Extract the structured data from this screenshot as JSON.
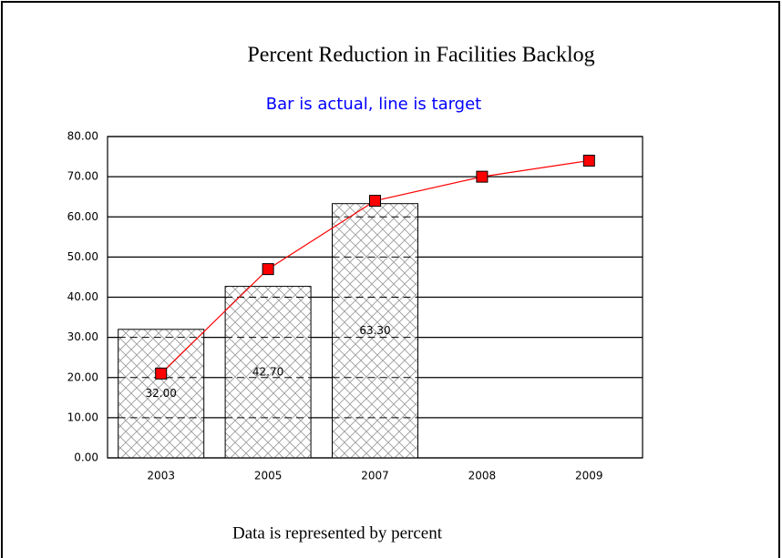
{
  "chart_data": {
    "type": "bar",
    "title": "Percent Reduction in Facilities Backlog",
    "subtitle": "Bar is actual, line is target",
    "footer": "Data is represented by percent",
    "categories": [
      "2003",
      "2005",
      "2007",
      "2008",
      "2009"
    ],
    "series": [
      {
        "type": "bar",
        "color": "#ffffff",
        "values": [
          32,
          42.7,
          63.3,
          null,
          null
        ],
        "value_labels": [
          "32.00",
          "42.70",
          "63.30",
          null,
          null
        ]
      },
      {
        "type": "line",
        "color": "#ff0000",
        "values": [
          21,
          47,
          64,
          70,
          74
        ]
      }
    ],
    "ylim": [
      0,
      80
    ],
    "yticks": [
      {
        "value": 0,
        "label": "0.00"
      },
      {
        "value": 10,
        "label": "10.00"
      },
      {
        "value": 20,
        "label": "20.00"
      },
      {
        "value": 30,
        "label": "30.00"
      },
      {
        "value": 40,
        "label": "40.00"
      },
      {
        "value": 50,
        "label": "50.00"
      },
      {
        "value": 60,
        "label": "60.00"
      },
      {
        "value": 70,
        "label": "70.00"
      },
      {
        "value": 80,
        "label": "80.00"
      }
    ],
    "grid": true
  }
}
